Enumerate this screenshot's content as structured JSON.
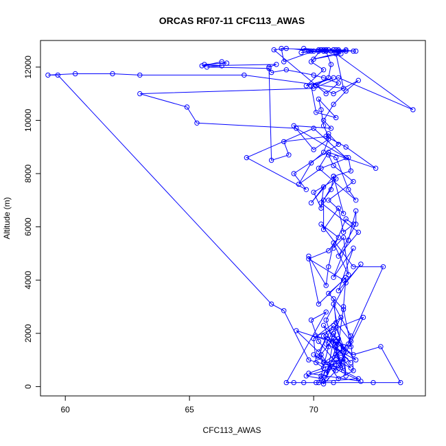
{
  "chart_data": {
    "type": "line",
    "title": "ORCAS RF07-11 CFC113_AWAS",
    "xlabel": "CFC113_AWAS",
    "ylabel": "Altitude (m)",
    "xlim": [
      59.0,
      74.5
    ],
    "ylim": [
      -350,
      13000
    ],
    "xticks": [
      60,
      65,
      70
    ],
    "yticks": [
      0,
      2000,
      4000,
      6000,
      8000,
      10000,
      12000
    ],
    "grid": false,
    "legend": "none",
    "color": "#0000ff",
    "marker": "open-circle",
    "series": [
      {
        "x": [
          70.2,
          70.9,
          71.0,
          70.5,
          70.9,
          71.2,
          71.3,
          70.8,
          71.5,
          71.1,
          70.5,
          71.3,
          71.9,
          71.0,
          71.6,
          70.8,
          71.4,
          71.7,
          71.7,
          71.0,
          71.8,
          70.3,
          70.7,
          70.8,
          71.2,
          70.6,
          71.6,
          70.8,
          70.6,
          70.9,
          71.4,
          71.7,
          70.2,
          70.6,
          72.5,
          71.3,
          70.5,
          70.6,
          71.0,
          69.2,
          69.7,
          67.3,
          70.0,
          71.3,
          69.3,
          65.3,
          64.9,
          63.0,
          70.0,
          71.0,
          74.0,
          70.9,
          71.2,
          67.2,
          63.0,
          61.9,
          60.4,
          59.3,
          59.7,
          68.3,
          68.8,
          69.8,
          71.0,
          72.0,
          70.1,
          71.5,
          71.2,
          70.6,
          71.2,
          69.8,
          70.6,
          71.0,
          70.3,
          71.6,
          72.8,
          71.4,
          71.0,
          70.7,
          70.5,
          71.1,
          71.5,
          70.9,
          70.4,
          71.8,
          70.0,
          70.9,
          70.4,
          70.3,
          70.6,
          70.8,
          71.3,
          71.0,
          70.2,
          69.9,
          70.5,
          68.9,
          69.2,
          69.6,
          70.1,
          70.8,
          72.4,
          73.5,
          72.7,
          71.6,
          70.5,
          70.2,
          70.8,
          71.2,
          70.4,
          71.7,
          70.5,
          71.1,
          70.0,
          70.1,
          70.4,
          70.3,
          71.0,
          71.6,
          71.5,
          70.9,
          70.8
        ],
        "y": [
          150,
          1200,
          1800,
          300,
          2200,
          1500,
          400,
          3100,
          1900,
          800,
          2500,
          3900,
          4600,
          3600,
          5200,
          4100,
          5500,
          6600,
          6100,
          4900,
          5800,
          6900,
          7400,
          7900,
          6500,
          7000,
          7700,
          8300,
          8700,
          8600,
          7400,
          7000,
          8200,
          8800,
          8200,
          9000,
          9400,
          9500,
          9100,
          8000,
          7400,
          8600,
          9700,
          8600,
          9700,
          9900,
          10500,
          11000,
          11200,
          11600,
          10400,
          12500,
          11200,
          11700,
          11700,
          11750,
          11750,
          11700,
          11700,
          3100,
          2850,
          1000,
          700,
          2600,
          1900,
          1500,
          2900,
          3500,
          4000,
          4800,
          5100,
          5600,
          6100,
          4500,
          4500,
          1600,
          1300,
          900,
          500,
          1100,
          700,
          1000,
          200,
          300,
          1200,
          600,
          100,
          400,
          1500,
          2000,
          1300,
          800,
          1700,
          2500,
          2800,
          150,
          150,
          150,
          150,
          150,
          150,
          150,
          1500,
          1200,
          1900,
          1100,
          1800,
          600,
          2300,
          1000,
          1600,
          2600,
          1800,
          900,
          700,
          1200,
          300,
          600,
          1700,
          2400,
          3300
        ]
      },
      {
        "x": [
          70.3,
          69.7,
          70.8,
          71.9,
          69.8,
          71.3,
          70.4,
          71.2,
          70.9,
          70.9,
          71.5,
          70.4,
          70.8,
          70.2,
          69.3,
          71.0,
          71.2,
          71.3,
          70.2,
          69.8,
          70.5,
          70.6,
          70.8,
          71.4,
          71.2,
          70.8,
          71.3,
          71.6,
          71.2,
          71.0,
          70.4,
          70.4,
          70.9,
          70.0,
          70.3,
          70.4,
          69.9,
          70.8,
          71.5,
          71.4,
          70.3,
          69.4,
          69.9,
          70.4,
          70.6,
          70.0,
          69.2,
          70.7,
          70.4,
          70.8,
          71.3,
          71.8,
          70.8,
          70.1,
          70.6,
          70.7,
          70.5,
          70.5,
          70.9,
          71.1,
          70.0,
          71.3,
          70.7,
          70.8,
          69.9,
          69.6,
          70.3,
          69.9,
          70.4,
          69.7,
          70.8,
          69.9,
          70.1,
          70.9,
          70.2,
          70.3,
          70.4,
          70.6,
          68.8,
          69.0,
          68.3,
          68.2,
          68.5,
          65.5,
          66.3,
          66.5,
          65.6,
          66.3,
          65.7,
          68.2,
          68.3,
          68.9,
          70.0,
          70.4,
          71.0,
          70.5,
          68.4,
          68.9,
          70.2,
          70.5,
          70.6,
          70.4,
          70.2,
          70.4,
          69.5,
          69.8,
          71.3,
          70.9,
          70.0,
          68.8,
          68.7,
          70.4,
          70.2,
          70.8,
          71.0,
          70.5,
          70.3,
          71.6,
          71.0,
          71.7
        ],
        "y": [
          300,
          400,
          700,
          200,
          500,
          1000,
          900,
          1400,
          1700,
          1500,
          900,
          1900,
          2300,
          1300,
          2100,
          1600,
          3000,
          4100,
          3100,
          4900,
          3800,
          4500,
          5400,
          4200,
          5600,
          5200,
          6300,
          6100,
          5800,
          6700,
          5900,
          7000,
          7800,
          7300,
          6700,
          7500,
          6900,
          7900,
          8100,
          8600,
          8200,
          7600,
          8400,
          8800,
          9300,
          8900,
          9800,
          9700,
          10000,
          10600,
          11100,
          11500,
          11000,
          11300,
          11600,
          12100,
          12600,
          12650,
          12650,
          12500,
          12300,
          12600,
          12600,
          12650,
          12600,
          12700,
          12650,
          12200,
          11900,
          11300,
          11600,
          11300,
          10300,
          10100,
          10800,
          10400,
          9800,
          9400,
          9200,
          8700,
          8500,
          12000,
          12100,
          12050,
          12200,
          12150,
          12100,
          12050,
          12000,
          11950,
          11800,
          11900,
          11700,
          11600,
          11400,
          11000,
          12650,
          12700,
          12600,
          12600,
          12650,
          12600,
          12650,
          12600,
          12550,
          12600,
          12650,
          12550,
          12600,
          12200,
          12700,
          12650,
          12600,
          12650,
          12600,
          12650,
          12650,
          12600,
          12650,
          12600
        ]
      }
    ]
  }
}
